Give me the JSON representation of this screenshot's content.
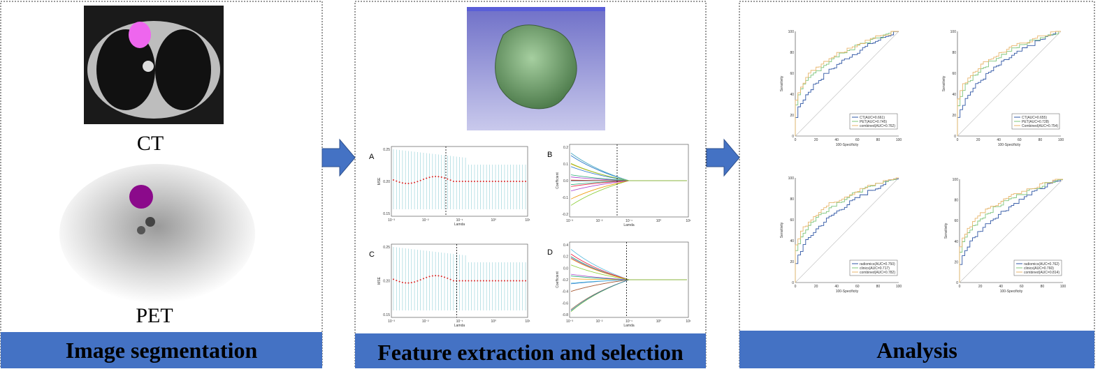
{
  "panels": [
    {
      "footer": "Image segmentation",
      "captions": [
        "CT",
        "PET"
      ]
    },
    {
      "footer": "Feature extraction and selection",
      "plots": [
        {
          "letter": "A",
          "ylabel": "MSE",
          "xlabel": "Lamda",
          "yticks": [
            "0.25",
            "0.20",
            "0.15"
          ]
        },
        {
          "letter": "B",
          "ylabel": "Coefficient",
          "xlabel": "Lamda",
          "yticks": [
            "0.2",
            "0.1",
            "0.0",
            "-0.1",
            "-0.2"
          ]
        },
        {
          "letter": "C",
          "ylabel": "MSE",
          "xlabel": "Lamda",
          "yticks": [
            "0.25",
            "0.20",
            "0.15"
          ]
        },
        {
          "letter": "D",
          "ylabel": "Coefficient",
          "xlabel": "Lamda",
          "yticks": [
            "0.4",
            "0.2",
            "0.0",
            "-0.2",
            "-0.4",
            "-0.6",
            "-0.8"
          ]
        }
      ],
      "xticks": [
        "10⁻³",
        "10⁻²",
        "10⁻¹",
        "10⁰",
        "10¹"
      ]
    },
    {
      "footer": "Analysis",
      "plots": [
        {
          "legend": [
            "CT(AUC=0.661)",
            "PET(AUC=0.745)",
            "combined(AUC=0.762)"
          ]
        },
        {
          "legend": [
            "CT(AUC=0.655)",
            "PET(AUC=0.728)",
            "Combined(AUC=0.754)"
          ]
        },
        {
          "legend": [
            "radiomics(AUC=0.750)",
            "clinics(AUC=0.717)",
            "combined(AUC=0.782)"
          ]
        },
        {
          "legend": [
            "radiomics(AUC=0.762)",
            "clinics(AUC=0.760)",
            "combined(AUC=0.814)"
          ]
        }
      ],
      "xlabel": "100-Specificity",
      "ylabel": "Sensitivity",
      "ticks": [
        "0",
        "20",
        "40",
        "60",
        "80",
        "100"
      ]
    }
  ]
}
